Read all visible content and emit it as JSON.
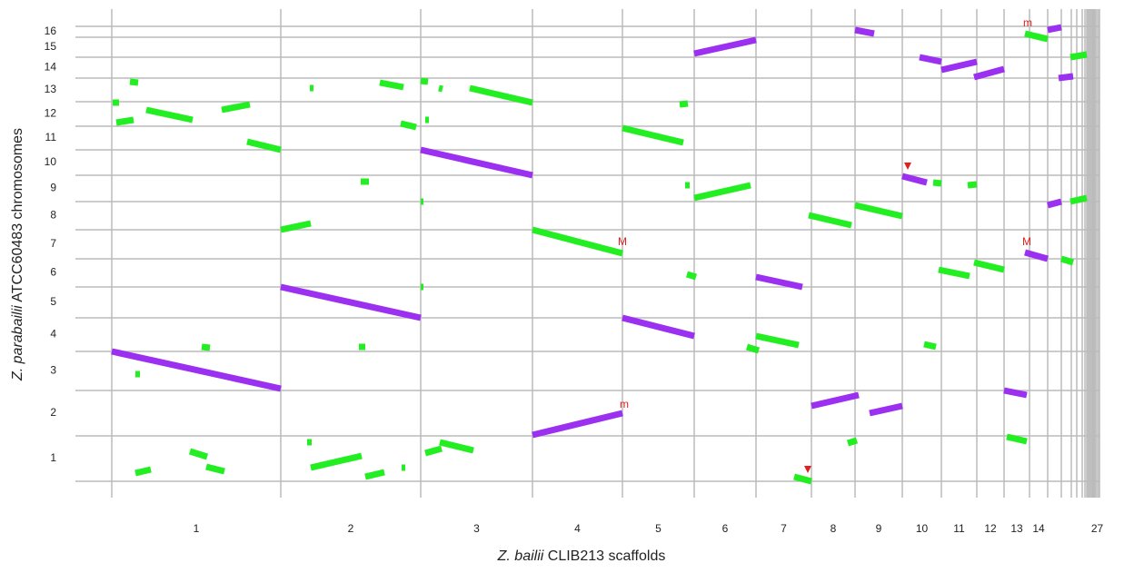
{
  "chart_data": {
    "type": "synteny",
    "x_title_species": "Z. bailii",
    "x_title": "CLIB213 scaffolds",
    "y_title_species": "Z. parabailii",
    "y_title": "ATCC60483 chromosomes",
    "xlim": [
      0,
      1087
    ],
    "ylim": [
      0,
      501
    ],
    "xticks": [
      0,
      186,
      340,
      463,
      562,
      641,
      709,
      770,
      818,
      870,
      913,
      952,
      982,
      1010,
      1030,
      1045,
      1056,
      1062,
      1068,
      1071,
      1073,
      1075,
      1077,
      1079,
      1080,
      1081,
      1082,
      1087
    ],
    "yticks": [
      0,
      50,
      100,
      143,
      180,
      214,
      245,
      277,
      308,
      337,
      365,
      391,
      418,
      444,
      467,
      489,
      501
    ],
    "categories": [
      "1",
      "2",
      "3",
      "4",
      "5",
      "6",
      "7",
      "8",
      "9",
      "10",
      "11",
      "12",
      "13",
      "14",
      null,
      null,
      null,
      null,
      null,
      null,
      null,
      null,
      null,
      null,
      null,
      null,
      "27"
    ],
    "ycategories": [
      "1",
      "2",
      "3",
      "4",
      "5",
      "6",
      "7",
      "8",
      "9",
      "10",
      "11",
      "12",
      "13",
      "14",
      "15",
      "16"
    ],
    "grid": true,
    "series": [
      {
        "color": "#9b30f0",
        "segments": [
          [
            0,
            143,
            186,
            102
          ],
          [
            186,
            214,
            340,
            180
          ],
          [
            340,
            365,
            463,
            337
          ],
          [
            463,
            51,
            562,
            75
          ],
          [
            562,
            180,
            641,
            160
          ],
          [
            641,
            471,
            709,
            486
          ],
          [
            834,
            75,
            870,
            83
          ],
          [
            770,
            83,
            822,
            95
          ],
          [
            818,
            497,
            839,
            493
          ],
          [
            870,
            336,
            897,
            329
          ],
          [
            889,
            467,
            913,
            462
          ],
          [
            913,
            453,
            952,
            462
          ],
          [
            949,
            445,
            982,
            454
          ],
          [
            982,
            100,
            1007,
            95
          ],
          [
            1005,
            252,
            1030,
            245
          ],
          [
            1030,
            497,
            1045,
            500
          ],
          [
            1030,
            304,
            1045,
            308
          ],
          [
            1042,
            444,
            1058,
            446
          ],
          [
            709,
            225,
            760,
            214
          ]
        ]
      },
      {
        "color": "#22ee22",
        "segments": [
          [
            463,
            277,
            562,
            251
          ],
          [
            562,
            389,
            629,
            373
          ],
          [
            641,
            312,
            703,
            326
          ],
          [
            38,
            409,
            89,
            398
          ],
          [
            149,
            374,
            186,
            365
          ],
          [
            5,
            395,
            24,
            398
          ],
          [
            121,
            409,
            152,
            415
          ],
          [
            20,
            440,
            29,
            439
          ],
          [
            1,
            417,
            8,
            417
          ],
          [
            186,
            277,
            219,
            284
          ],
          [
            295,
            439,
            321,
            434
          ],
          [
            394,
            433,
            463,
            417
          ],
          [
            318,
            394,
            335,
            390
          ],
          [
            340,
            441,
            348,
            440
          ],
          [
            360,
            433,
            364,
            432
          ],
          [
            345,
            398,
            349,
            398
          ],
          [
            274,
            330,
            283,
            330
          ],
          [
            218,
            433,
            222,
            433
          ],
          [
            340,
            308,
            343,
            308
          ],
          [
            340,
            214,
            343,
            214
          ],
          [
            99,
            148,
            108,
            147
          ],
          [
            26,
            118,
            31,
            118
          ],
          [
            272,
            148,
            279,
            148
          ],
          [
            26,
            9,
            43,
            13
          ],
          [
            86,
            33,
            105,
            27
          ],
          [
            104,
            16,
            124,
            11
          ],
          [
            219,
            15,
            275,
            28
          ],
          [
            279,
            5,
            300,
            10
          ],
          [
            215,
            43,
            220,
            43
          ],
          [
            319,
            15,
            323,
            15
          ],
          [
            345,
            31,
            363,
            36
          ],
          [
            361,
            43,
            398,
            34
          ],
          [
            625,
            415,
            634,
            416
          ],
          [
            631,
            326,
            636,
            326
          ],
          [
            633,
            228,
            643,
            225
          ],
          [
            709,
            160,
            756,
            150
          ],
          [
            699,
            148,
            712,
            144
          ],
          [
            751,
            5,
            770,
            0
          ],
          [
            767,
            293,
            814,
            282
          ],
          [
            818,
            304,
            870,
            292
          ],
          [
            810,
            42,
            820,
            45
          ],
          [
            904,
            329,
            913,
            328
          ],
          [
            942,
            326,
            952,
            327
          ],
          [
            910,
            233,
            944,
            226
          ],
          [
            949,
            241,
            982,
            233
          ],
          [
            894,
            151,
            907,
            148
          ],
          [
            985,
            49,
            1007,
            44
          ],
          [
            1005,
            493,
            1030,
            487
          ],
          [
            1045,
            245,
            1058,
            241
          ],
          [
            1055,
            467,
            1073,
            470
          ],
          [
            1055,
            308,
            1073,
            312
          ]
        ]
      }
    ],
    "annotations": [
      {
        "text": "m",
        "x": 564,
        "y": 84
      },
      {
        "text": "m",
        "x": 1008,
        "y": 504
      },
      {
        "text": "M",
        "x": 562,
        "y": 263
      },
      {
        "text": "M",
        "x": 1007,
        "y": 263
      }
    ]
  }
}
